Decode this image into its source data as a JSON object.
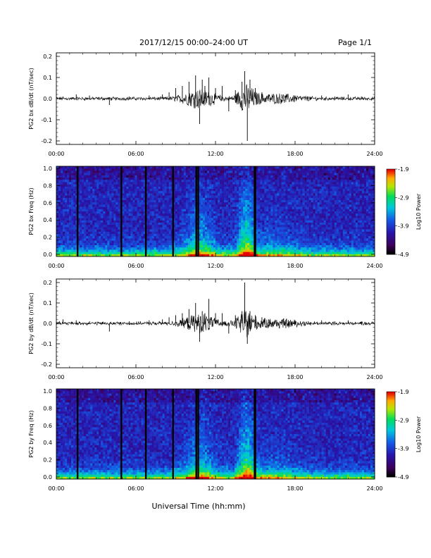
{
  "header": {
    "title": "2017/12/15  00:00–24:00 UT",
    "page": "Page 1/1"
  },
  "footer": {
    "xlabel": "Universal Time (hh:mm)"
  },
  "time_ticks": [
    "00:00",
    "06:00",
    "12:00",
    "18:00",
    "24:00"
  ],
  "chart_data": [
    {
      "type": "line",
      "ylabel": "PG2 bx dB/dt (nT/sec)",
      "xlim": [
        0,
        24
      ],
      "ylim": [
        -0.2,
        0.2
      ],
      "yticks": [
        "0.2",
        "0.1",
        "0.0",
        "-0.1",
        "-0.2"
      ],
      "series": [
        {
          "x": [
            0.5,
            1.5,
            2.5,
            4.0,
            5.5,
            7.0,
            8.0,
            8.5,
            9.0,
            9.5,
            10.0,
            10.5,
            10.8,
            11.0,
            11.2,
            11.5,
            12.0,
            12.5,
            13.0,
            13.5,
            14.0,
            14.2,
            14.4,
            14.6,
            15.0,
            15.5,
            16.0,
            17.0,
            18.0,
            19.0,
            20.0,
            21.0,
            22.0,
            23.0
          ],
          "y": [
            0.01,
            0.02,
            0.015,
            -0.03,
            0.01,
            0.015,
            0.02,
            0.03,
            0.05,
            0.06,
            0.08,
            0.11,
            -0.12,
            0.09,
            0.06,
            0.1,
            0.05,
            0.06,
            -0.06,
            0.04,
            0.08,
            0.13,
            -0.2,
            0.09,
            0.05,
            0.03,
            0.02,
            0.02,
            0.015,
            0.01,
            0.015,
            0.01,
            0.02,
            0.01
          ]
        }
      ]
    },
    {
      "type": "heatmap",
      "ylabel": "PG2 bx Freq (Hz)",
      "xlim": [
        0,
        24
      ],
      "ylim": [
        0,
        1.0
      ],
      "yticks": [
        "1.0",
        "0.8",
        "0.6",
        "0.4",
        "0.2",
        "0.0"
      ],
      "colorbar": {
        "label": "Log10 Power",
        "ticks": [
          "-1.9",
          "-2.9",
          "-3.9",
          "-4.9"
        ],
        "range": [
          -4.9,
          -1.9
        ]
      },
      "gaps_hours": [
        1.6,
        4.9,
        6.75,
        8.8,
        10.55,
        10.7,
        14.95,
        15.0
      ]
    },
    {
      "type": "line",
      "ylabel": "PG2 by dB/dt (nT/sec)",
      "xlim": [
        0,
        24
      ],
      "ylim": [
        -0.2,
        0.2
      ],
      "yticks": [
        "0.2",
        "0.1",
        "0.0",
        "-0.1",
        "-0.2"
      ],
      "series": [
        {
          "x": [
            0.5,
            1.5,
            2.5,
            4.0,
            5.5,
            7.0,
            8.0,
            8.5,
            9.0,
            9.5,
            10.0,
            10.5,
            10.8,
            11.0,
            11.2,
            11.5,
            12.0,
            12.5,
            13.0,
            13.5,
            14.0,
            14.2,
            14.4,
            14.6,
            15.0,
            15.5,
            16.0,
            17.0,
            18.0,
            19.0,
            20.0,
            21.0,
            22.0,
            23.0
          ],
          "y": [
            0.02,
            0.015,
            0.01,
            -0.04,
            0.01,
            0.015,
            0.02,
            0.03,
            0.04,
            0.05,
            0.07,
            0.1,
            -0.09,
            0.06,
            0.05,
            0.12,
            0.05,
            0.05,
            -0.05,
            0.04,
            0.06,
            0.2,
            -0.1,
            0.06,
            0.04,
            0.03,
            0.02,
            0.015,
            0.015,
            0.01,
            0.015,
            0.01,
            0.015,
            0.01
          ]
        }
      ]
    },
    {
      "type": "heatmap",
      "ylabel": "PG2 by Freq (Hz)",
      "xlim": [
        0,
        24
      ],
      "ylim": [
        0,
        1.0
      ],
      "yticks": [
        "1.0",
        "0.8",
        "0.6",
        "0.4",
        "0.2",
        "0.0"
      ],
      "colorbar": {
        "label": "Log10 Power",
        "ticks": [
          "-1.9",
          "-2.9",
          "-3.9",
          "-4.9"
        ],
        "range": [
          -4.9,
          -1.9
        ]
      },
      "gaps_hours": [
        1.6,
        4.9,
        6.75,
        8.8,
        10.55,
        10.7,
        14.95,
        15.0
      ]
    }
  ]
}
